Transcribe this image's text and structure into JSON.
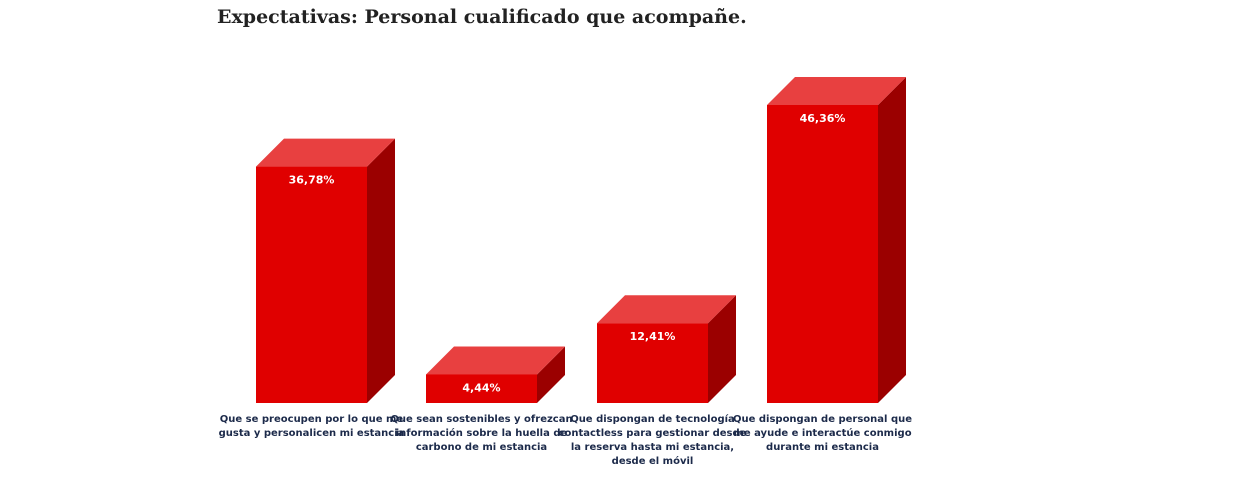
{
  "chart_data": {
    "type": "bar",
    "title": "Expectativas: Personal cualificado que acompañe.",
    "categories": [
      "Que se preocupen por lo que me gusta y personalicen mi estancia",
      "Que sean sostenibles y ofrezcan información sobre la huella de carbono de mi estancia",
      "Que dispongan de tecnología contactless para gestionar desde la reserva hasta mi estancia, desde el móvil",
      "Que dispongan de personal que me ayude e interactúe conmigo durante mi estancia"
    ],
    "values": [
      36.78,
      4.44,
      12.41,
      46.36
    ],
    "value_labels": [
      "36,78%",
      "4,44%",
      "12,41%",
      "46,36%"
    ],
    "xlabel": "",
    "ylabel": "",
    "ylim": [
      0,
      46.36
    ],
    "grid": false,
    "legend": "none",
    "colors": {
      "front": "#e00000",
      "top": "#e84040",
      "side": "#9b0000"
    }
  }
}
